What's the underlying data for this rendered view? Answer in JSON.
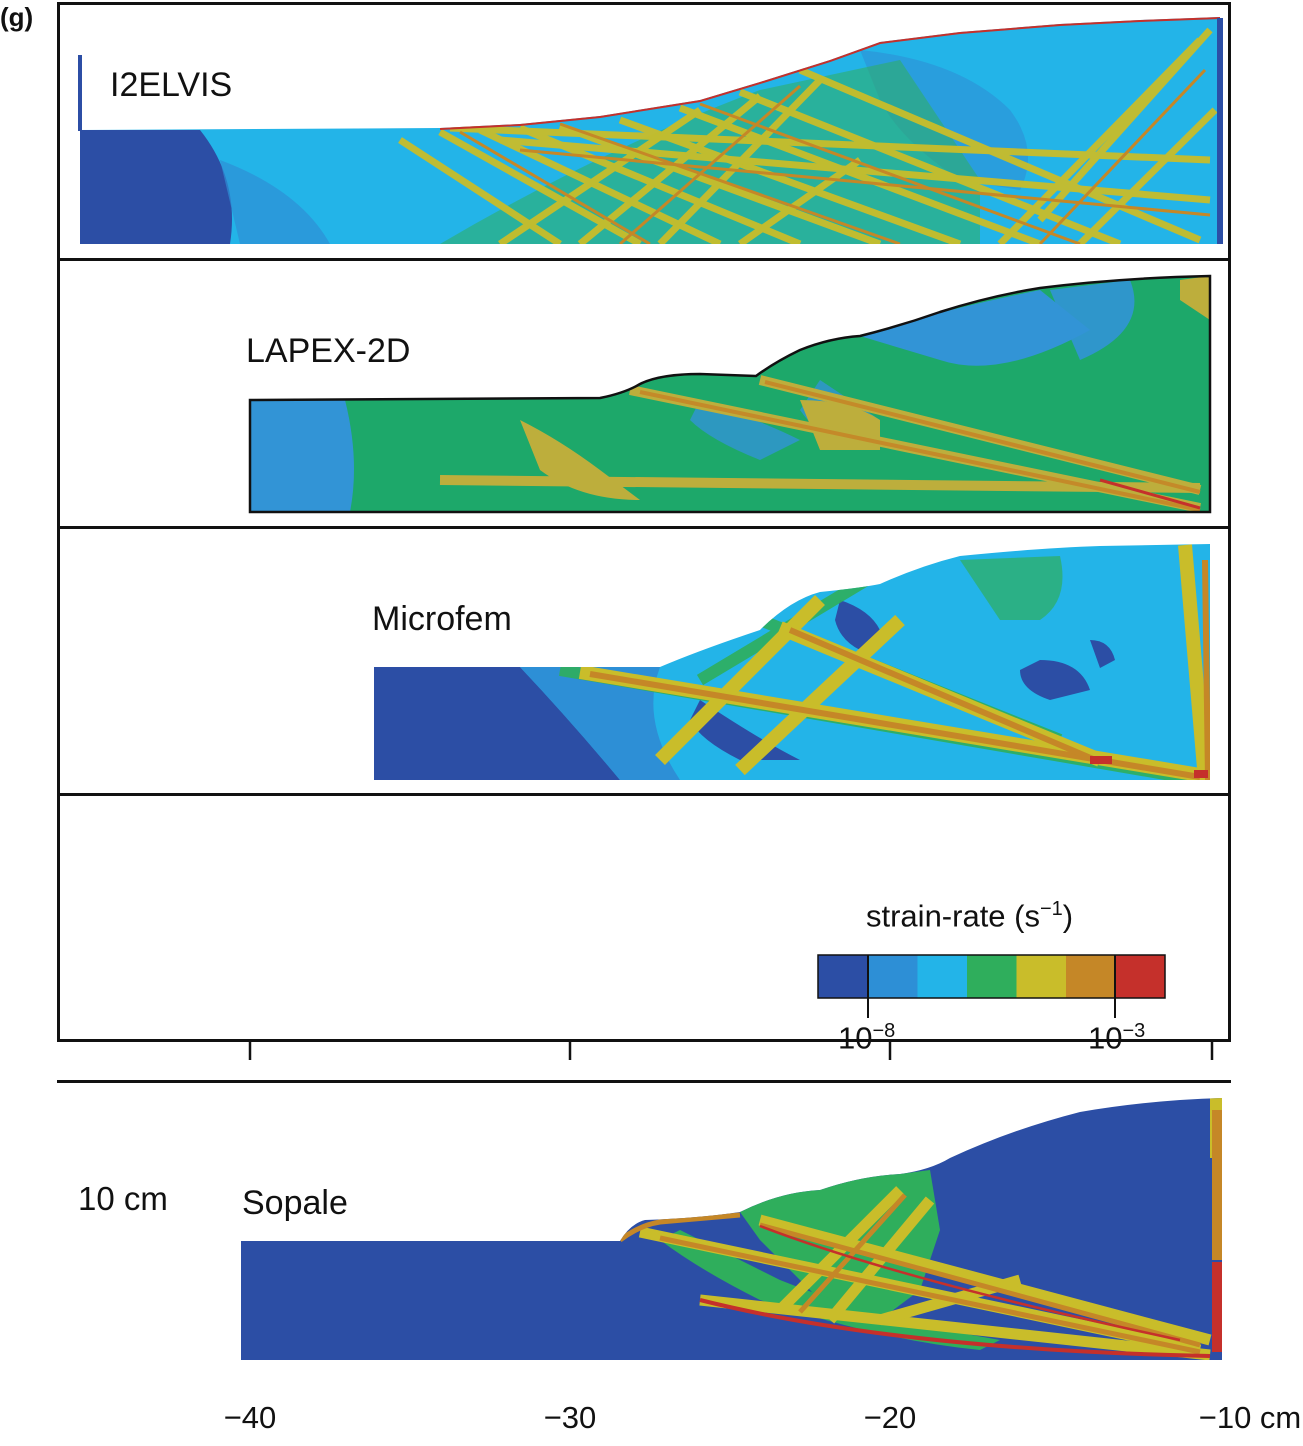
{
  "figure": {
    "panel_tag": "(g)",
    "colors": {
      "c1": "#2c4ea5",
      "c2": "#2d8fd6",
      "c3": "#23b4e8",
      "c4": "#2fae5c",
      "c5": "#c9bd2a",
      "c6": "#c58727",
      "c7": "#c5302b",
      "lapex_green": "#1da86a",
      "lapex_olive": "#bdae3c",
      "lapex_blue": "#3294d6"
    }
  },
  "panels": [
    {
      "id": "i2elvis",
      "label": "I2ELVIS"
    },
    {
      "id": "lapex",
      "label": "LAPEX-2D"
    },
    {
      "id": "microfem",
      "label": "Microfem"
    },
    {
      "id": "legend",
      "label": ""
    },
    {
      "id": "sopale",
      "label": "Sopale"
    }
  ],
  "colorbar": {
    "title": "strain-rate (s",
    "title_exp": "−1",
    "title_close": ")",
    "ticks": [
      {
        "base": "10",
        "exp": "−8"
      },
      {
        "base": "10",
        "exp": "−3"
      }
    ]
  },
  "scale_label": "10 cm",
  "x_axis": {
    "ticks": [
      "−40",
      "−30",
      "−20",
      "−10 cm"
    ]
  }
}
